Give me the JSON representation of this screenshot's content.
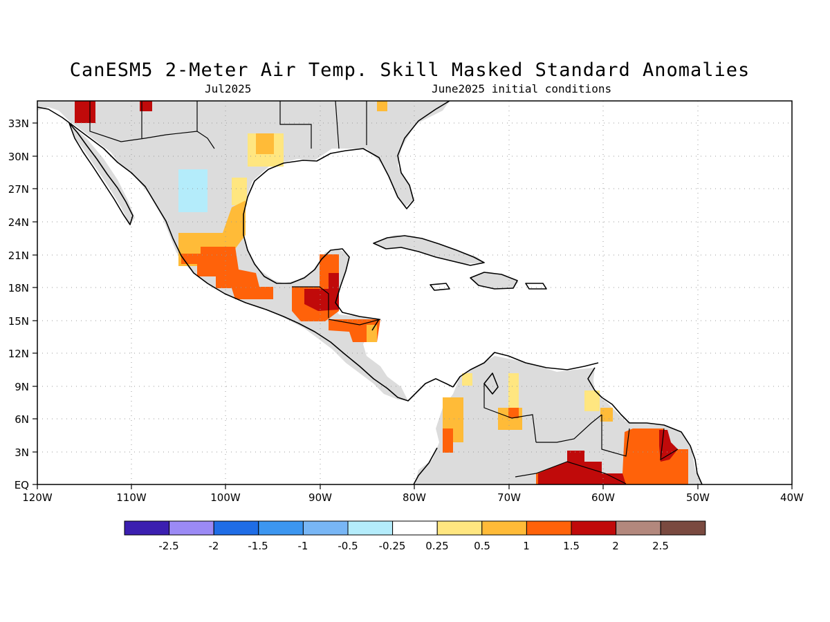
{
  "map": {
    "title": "CanESM5 2-Meter Air Temp. Skill Masked Standard Anomalies",
    "valid_month": "Jul2025",
    "initial_conditions": "June2025 initial conditions",
    "lat_ticks": [
      "33N",
      "30N",
      "27N",
      "24N",
      "21N",
      "18N",
      "15N",
      "12N",
      "9N",
      "6N",
      "3N",
      "EQ"
    ],
    "lon_ticks": [
      "120W",
      "110W",
      "100W",
      "90W",
      "80W",
      "70W",
      "60W",
      "50W",
      "40W"
    ],
    "colors": {
      "land_masked": "#dcdcdc",
      "grid": "#9a9a9a",
      "coast": "#000000"
    }
  },
  "colorbar": {
    "labels": [
      "-2.5",
      "-2",
      "-1.5",
      "-1",
      "-0.5",
      "-0.25",
      "0.25",
      "0.5",
      "1",
      "1.5",
      "2",
      "2.5"
    ],
    "colors": [
      "#3b1fb0",
      "#9b8af5",
      "#1f6de6",
      "#3c96f0",
      "#78b6f5",
      "#b4ecfb",
      "#ffffff",
      "#ffe680",
      "#ffbb38",
      "#ff620a",
      "#c00a0a",
      "#b3887d",
      "#7a4a40"
    ]
  }
}
